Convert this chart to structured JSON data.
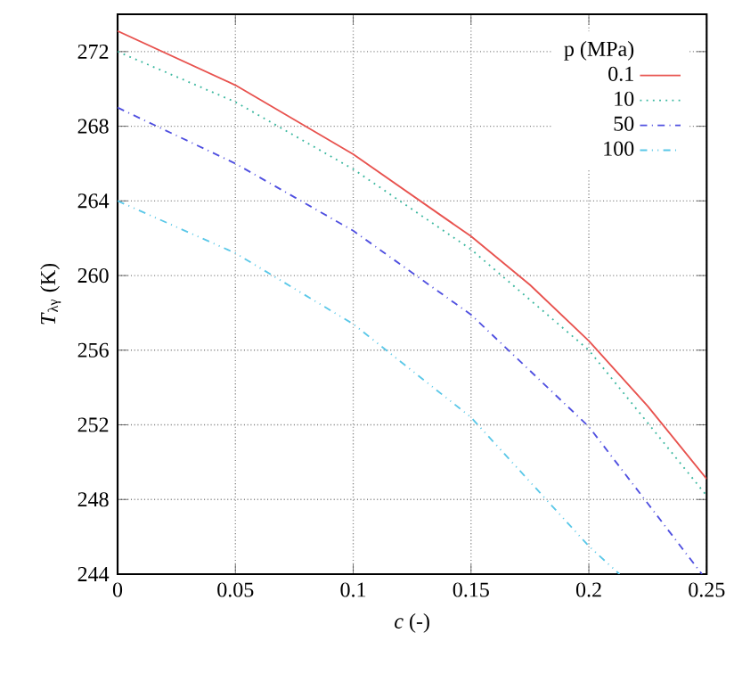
{
  "chart_data": {
    "type": "line",
    "xlabel": "*c* (-)",
    "ylabel": "*T*$_{λγ}$ (K)",
    "legend_title": "p (MPa)",
    "xlim": [
      0,
      0.25
    ],
    "ylim": [
      244,
      274
    ],
    "xticks": [
      0,
      0.05,
      0.1,
      0.15,
      0.2,
      0.25
    ],
    "yticks": [
      244,
      248,
      252,
      256,
      260,
      264,
      268,
      272
    ],
    "grid": true,
    "legend": "top right",
    "series": [
      {
        "name": "0.1",
        "color": "#e8534f",
        "line_style": "solid",
        "x": [
          0,
          0.05,
          0.1,
          0.15,
          0.175,
          0.2,
          0.225,
          0.25
        ],
        "values": [
          273.1,
          270.2,
          266.5,
          262.1,
          259.5,
          256.5,
          253,
          249.1
        ]
      },
      {
        "name": "10",
        "color": "#3cb8a0",
        "line_style": "dotted",
        "x": [
          0,
          0.05,
          0.1,
          0.15,
          0.2,
          0.25
        ],
        "values": [
          272,
          269.3,
          265.7,
          261.4,
          256,
          248.2
        ]
      },
      {
        "name": "50",
        "color": "#5050e0",
        "line_style": "dashdot",
        "x": [
          0,
          0.05,
          0.1,
          0.15,
          0.2,
          0.248
        ],
        "values": [
          269,
          266,
          262.4,
          257.9,
          251.9,
          244
        ]
      },
      {
        "name": "100",
        "color": "#5bc8e8",
        "line_style": "dashdotdot",
        "x": [
          0,
          0.05,
          0.1,
          0.15,
          0.2,
          0.213
        ],
        "values": [
          264,
          261.2,
          257.4,
          252.4,
          245.5,
          244
        ]
      }
    ]
  }
}
